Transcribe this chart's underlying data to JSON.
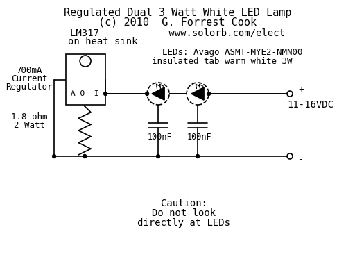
{
  "title_line1": "Regulated Dual 3 Watt White LED Lamp",
  "title_line2": "(c) 2010  G. Forrest Cook",
  "title_line3": "LM317            www.solorb.com/elect",
  "title_line4": "on heat sink",
  "label_regulator1": "700mA",
  "label_regulator2": "Current",
  "label_regulator3": "Regulator",
  "label_resistor1": "1.8 ohm",
  "label_resistor2": "2 Watt",
  "label_leds1": "LEDs: Avago ASMT-MYE2-NMN00",
  "label_leds2": "insulated tab warm white 3W",
  "label_cap1": "100nF",
  "label_cap2": "100nF",
  "label_voltage": "11-16VDC",
  "label_plus": "+",
  "label_minus": "-",
  "label_ao": "A O  I",
  "label_caution1": "Caution:",
  "label_caution2": "Do not look",
  "label_caution3": "directly at LEDs",
  "bg_color": "#ffffff",
  "line_color": "#000000",
  "font_color": "#000000"
}
